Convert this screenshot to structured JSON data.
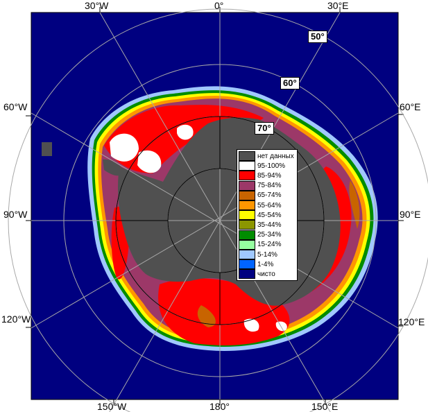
{
  "map": {
    "longitude_labels_top": [
      "30°W",
      "0°",
      "30°E"
    ],
    "longitude_labels_bottom": [
      "150°W",
      "180°",
      "150°E"
    ],
    "longitude_labels_left": [
      "60°W",
      "90°W",
      "120°W"
    ],
    "longitude_labels_right": [
      "60°E",
      "90°E",
      "120°E"
    ],
    "latitude_labels": [
      "50°",
      "60°",
      "70°"
    ],
    "colors": {
      "open_water": "#000080",
      "no_data": "#505050",
      "grid": "#a8a8a8"
    }
  },
  "legend": {
    "items": [
      {
        "label": "нет данных",
        "color": "#505050"
      },
      {
        "label": "95-100%",
        "color": "#ffffff"
      },
      {
        "label": "85-94%",
        "color": "#ff0000"
      },
      {
        "label": "75-84%",
        "color": "#9c3868"
      },
      {
        "label": "65-74%",
        "color": "#c86400"
      },
      {
        "label": "55-64%",
        "color": "#ff9600"
      },
      {
        "label": "45-54%",
        "color": "#ffff00"
      },
      {
        "label": "35-44%",
        "color": "#8c9600"
      },
      {
        "label": "25-34%",
        "color": "#008c00"
      },
      {
        "label": "15-24%",
        "color": "#96ffa0"
      },
      {
        "label": "5-14%",
        "color": "#a0c8ff"
      },
      {
        "label": "1-4%",
        "color": "#0064ff"
      },
      {
        "label": "чисто",
        "color": "#000080"
      }
    ]
  }
}
